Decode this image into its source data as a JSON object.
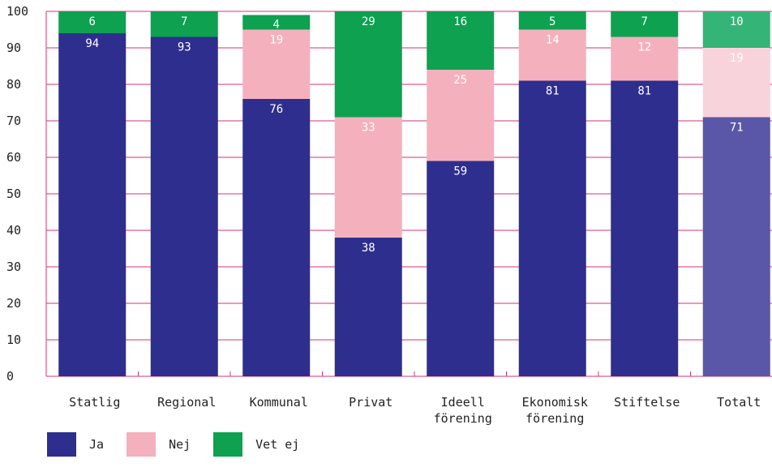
{
  "chart_data": {
    "type": "bar",
    "stacked": true,
    "categories": [
      [
        "Statlig"
      ],
      [
        "Regional"
      ],
      [
        "Kommunal"
      ],
      [
        "Privat"
      ],
      [
        "Ideell",
        "förening"
      ],
      [
        "Ekonomisk",
        "förening"
      ],
      [
        "Stiftelse"
      ],
      [
        "Totalt"
      ]
    ],
    "series": [
      {
        "name": "Ja",
        "values": [
          94,
          93,
          76,
          38,
          59,
          81,
          81,
          71
        ],
        "color": "#2e2e8f",
        "highlight_color": "#5a57a8",
        "label_color": "#ffffff"
      },
      {
        "name": "Nej",
        "values": [
          null,
          null,
          19,
          33,
          25,
          14,
          12,
          19
        ],
        "color": "#f5b0bd",
        "highlight_color": "#f9d3db",
        "label_color": "#ffffff"
      },
      {
        "name": "Vet ej",
        "values": [
          6,
          7,
          4,
          29,
          16,
          5,
          7,
          10
        ],
        "color": "#0da150",
        "highlight_color": "#35b477",
        "label_color": "#ffffff"
      }
    ],
    "highlight_category_index": 7,
    "ylim": [
      0,
      100
    ],
    "yticks": [
      0,
      10,
      20,
      30,
      40,
      50,
      60,
      70,
      80,
      90,
      100
    ],
    "grid": true,
    "grid_color": "#d6337a",
    "legend_position": "bottom-left"
  }
}
